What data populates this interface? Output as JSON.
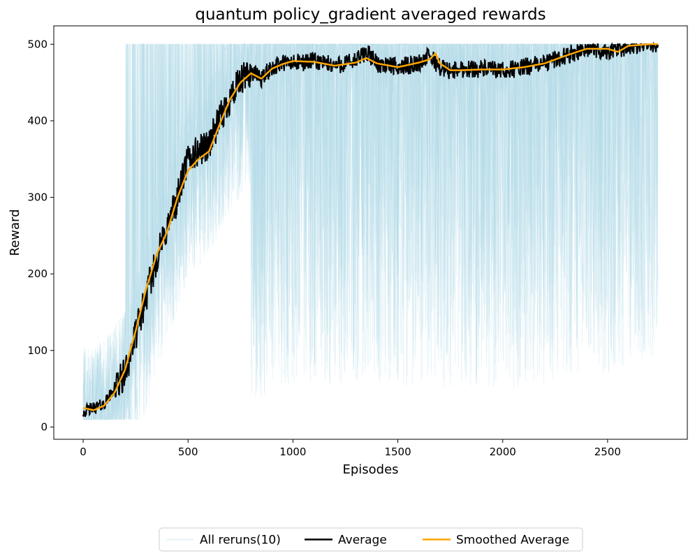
{
  "chart_data": {
    "type": "line",
    "title": "quantum policy_gradient averaged rewards",
    "xlabel": "Episodes",
    "ylabel": "Reward",
    "xlim": [
      -140,
      2880
    ],
    "ylim": [
      -16,
      524
    ],
    "xticks": [
      0,
      500,
      1000,
      1500,
      2000,
      2500
    ],
    "yticks": [
      0,
      100,
      200,
      300,
      400,
      500
    ],
    "grid": false,
    "legend_position": "bottom-center outside",
    "colors": {
      "reruns": "#add8e6",
      "average": "#000000",
      "smoothed": "#ffa500"
    },
    "legend": [
      {
        "label": "All reruns(10)",
        "key": "reruns"
      },
      {
        "label": "Average",
        "key": "average"
      },
      {
        "label": "Smoothed Average",
        "key": "smoothed"
      }
    ],
    "series": [
      {
        "name": "Average",
        "x": [
          0,
          50,
          100,
          150,
          200,
          250,
          300,
          350,
          400,
          450,
          500,
          550,
          600,
          650,
          700,
          750,
          800,
          850,
          900,
          950,
          1000,
          1100,
          1200,
          1300,
          1350,
          1400,
          1500,
          1600,
          1650,
          1700,
          1750,
          1800,
          1900,
          2000,
          2100,
          2200,
          2300,
          2400,
          2500,
          2600,
          2700,
          2740
        ],
        "y": [
          20,
          25,
          30,
          50,
          70,
          120,
          170,
          220,
          260,
          300,
          350,
          360,
          370,
          400,
          430,
          450,
          465,
          455,
          470,
          475,
          475,
          478,
          472,
          478,
          490,
          475,
          470,
          475,
          485,
          470,
          465,
          468,
          468,
          465,
          470,
          475,
          485,
          495,
          490,
          497,
          500,
          500
        ]
      },
      {
        "name": "Smoothed Average",
        "x": [
          0,
          50,
          100,
          150,
          200,
          250,
          300,
          350,
          400,
          450,
          500,
          550,
          600,
          650,
          700,
          750,
          800,
          850,
          900,
          950,
          1000,
          1100,
          1200,
          1300,
          1350,
          1400,
          1500,
          1600,
          1650,
          1680,
          1700,
          1750,
          1800,
          1900,
          2000,
          2100,
          2200,
          2300,
          2400,
          2500,
          2550,
          2600,
          2700,
          2740
        ],
        "y": [
          25,
          22,
          28,
          45,
          75,
          125,
          180,
          225,
          255,
          300,
          335,
          350,
          360,
          395,
          428,
          450,
          462,
          455,
          468,
          474,
          478,
          477,
          472,
          476,
          482,
          475,
          470,
          476,
          480,
          488,
          475,
          466,
          466,
          467,
          467,
          470,
          475,
          485,
          494,
          494,
          490,
          498,
          500,
          500
        ]
      }
    ]
  }
}
